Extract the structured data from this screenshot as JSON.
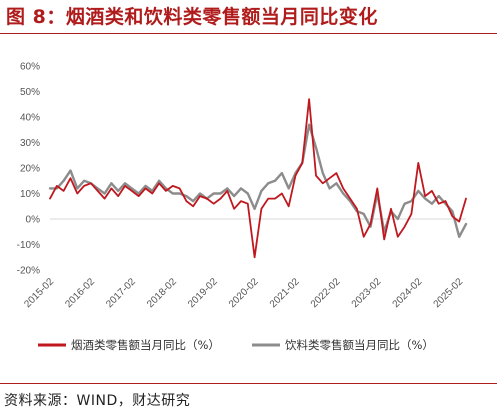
{
  "figure_label": "图 8：烟酒类和饮料类零售额当月同比变化",
  "source": "资料来源：WIND，财达研究",
  "colors": {
    "accent": "#b01c1c",
    "series1": "#c0181f",
    "series2": "#8c8c8c",
    "grid": "#d9d9d9"
  },
  "chart_data": {
    "type": "line",
    "title": "",
    "xlabel": "",
    "ylabel": "",
    "ylim": [
      -20,
      60
    ],
    "yticks": [
      "-20%",
      "-10%",
      "0%",
      "10%",
      "20%",
      "30%",
      "40%",
      "50%",
      "60%"
    ],
    "xticks": [
      "2015-02",
      "2016-02",
      "2017-02",
      "2018-02",
      "2019-02",
      "2020-02",
      "2021-02",
      "2022-02",
      "2023-02",
      "2024-02",
      "2025-02"
    ],
    "x": [
      "2015-02",
      "2015-04",
      "2015-06",
      "2015-08",
      "2015-10",
      "2015-12",
      "2016-02",
      "2016-04",
      "2016-06",
      "2016-08",
      "2016-10",
      "2016-12",
      "2017-02",
      "2017-04",
      "2017-06",
      "2017-08",
      "2017-10",
      "2017-12",
      "2018-02",
      "2018-04",
      "2018-06",
      "2018-08",
      "2018-10",
      "2018-12",
      "2019-02",
      "2019-04",
      "2019-06",
      "2019-08",
      "2019-10",
      "2019-12",
      "2020-02",
      "2020-04",
      "2020-06",
      "2020-08",
      "2020-10",
      "2020-12",
      "2021-02",
      "2021-04",
      "2021-06",
      "2021-08",
      "2021-10",
      "2021-12",
      "2022-02",
      "2022-04",
      "2022-06",
      "2022-08",
      "2022-10",
      "2022-12",
      "2023-02",
      "2023-04",
      "2023-06",
      "2023-08",
      "2023-10",
      "2023-12",
      "2024-02",
      "2024-04",
      "2024-06",
      "2024-08",
      "2024-10",
      "2024-12",
      "2025-02",
      "2025-04"
    ],
    "series": [
      {
        "name": "烟酒类零售额当月同比（%）",
        "color": "#c0181f",
        "values": [
          8,
          13,
          11,
          16,
          10,
          13,
          14,
          11,
          8,
          12,
          9,
          13,
          11,
          9,
          12,
          10,
          14,
          11,
          13,
          12,
          7,
          5,
          9,
          8,
          6,
          8,
          11,
          4,
          7,
          6,
          -15,
          4,
          8,
          8,
          10,
          5,
          17,
          22,
          47,
          17,
          14,
          16,
          18,
          12,
          8,
          4,
          -7,
          -2,
          12,
          -8,
          4,
          -7,
          -3,
          2,
          22,
          9,
          11,
          6,
          7,
          1,
          -1,
          8
        ]
      },
      {
        "name": "饮料类零售额当月同比（%）",
        "color": "#8c8c8c",
        "values": [
          12,
          12,
          15,
          19,
          12,
          15,
          14,
          12,
          10,
          14,
          11,
          14,
          12,
          10,
          13,
          11,
          15,
          12,
          10,
          10,
          9,
          7,
          10,
          8,
          10,
          10,
          12,
          9,
          12,
          10,
          4,
          11,
          14,
          15,
          18,
          12,
          18,
          22,
          37,
          28,
          18,
          12,
          14,
          10,
          7,
          3,
          2,
          -3,
          10,
          -5,
          3,
          0,
          6,
          7,
          11,
          8,
          6,
          9,
          6,
          3,
          -7,
          -2
        ]
      }
    ],
    "legend_position": "bottom",
    "grid": false
  }
}
